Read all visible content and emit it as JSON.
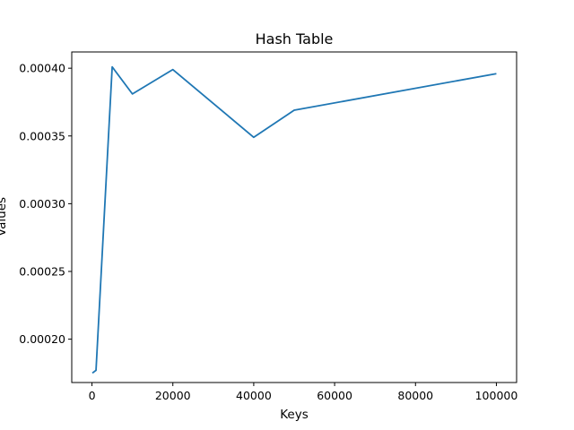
{
  "chart_data": {
    "type": "line",
    "title": "Hash Table",
    "xlabel": "Keys",
    "ylabel": "Values",
    "xlim": [
      -5000,
      105000
    ],
    "ylim": [
      0.000168,
      0.000412
    ],
    "xticks": [
      0,
      20000,
      40000,
      60000,
      80000,
      100000
    ],
    "xtick_labels": [
      "0",
      "20000",
      "40000",
      "60000",
      "80000",
      "100000"
    ],
    "yticks": [
      0.0002,
      0.00025,
      0.0003,
      0.00035,
      0.0004
    ],
    "ytick_labels": [
      "0.00020",
      "0.00025",
      "0.00030",
      "0.00035",
      "0.00040"
    ],
    "grid": false,
    "series": [
      {
        "color": "#1f77b4",
        "x": [
          100,
          1000,
          5000,
          10000,
          20000,
          40000,
          50000,
          100000
        ],
        "y": [
          0.000175,
          0.000177,
          0.000401,
          0.000381,
          0.000399,
          0.000349,
          0.000369,
          0.000396
        ]
      }
    ]
  }
}
